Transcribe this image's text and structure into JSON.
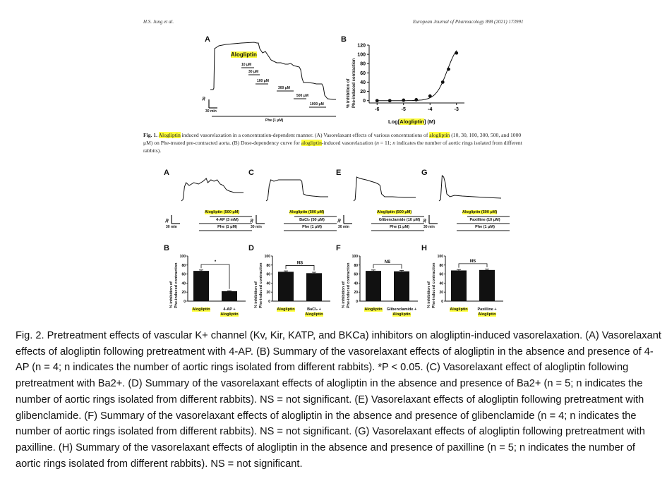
{
  "header": {
    "authors": "H.S. Jung et al.",
    "journal": "European Journal of Pharmacology 898 (2021) 173991"
  },
  "highlight_color": "#ffff3c",
  "fig1": {
    "panel_a": {
      "label": "A",
      "drug": "Alogliptin",
      "doses": [
        "10 μM",
        "30 μM",
        "100 μM",
        "300 μM",
        "500 μM",
        "1000 μM"
      ],
      "scale_g": "1g",
      "scale_min": "30 min",
      "phe": "Phe (1 μM)"
    },
    "panel_b": {
      "label": "B"
    },
    "caption": {
      "label": "Fig. 1.",
      "hl1": "Alogliptin",
      "t1": " induced vasorelaxation in a concentration-dependent manner. (A) Vasorelaxant effects of various concentrations of ",
      "hl2": "alogliptin",
      "t2": " (10, 30, 100, 300, 500, and 1000 μM) on Phe-treated pre-contracted aorta. (B) Dose-dependency curve for ",
      "hl3": "alogliptin",
      "t3": "-induced vasorelaxation (",
      "n_italic": "n",
      "t4": " = 11; ",
      "n_italic2": "n",
      "t5": " indicates the number of aortic rings isolated from different rabbits)."
    }
  },
  "chart_data": [
    {
      "type": "scatter",
      "panel": "Fig1B",
      "xlabel_pre": "Log[",
      "xlabel_hl": "Alogliptin",
      "xlabel_post": "] (M)",
      "ylabel_line1": "% inhibition of",
      "ylabel_line2": "Phe-induced contraction",
      "x": [
        -6,
        -5.52,
        -5,
        -4.52,
        -4,
        -3.52,
        -3.3,
        -3
      ],
      "y": [
        0,
        0,
        1,
        2,
        10,
        40,
        68,
        103
      ],
      "xlim": [
        -6.3,
        -2.7
      ],
      "ylim": [
        -5,
        120
      ],
      "xticks": [
        -6,
        -5,
        -4,
        -3
      ],
      "xtick_labels": [
        "-6",
        "-5",
        "-4",
        "-3"
      ],
      "yticks": [
        0,
        20,
        40,
        60,
        80,
        100,
        120
      ],
      "ytick_labels": [
        "0",
        "20",
        "40",
        "60",
        "80",
        "100",
        "120"
      ],
      "fit": "sigmoid"
    },
    {
      "type": "bar",
      "panel": "B",
      "categories": [
        "Alogliptin",
        "4-AP + Alogliptin"
      ],
      "cat_main": [
        "Alogliptin",
        "4-AP +"
      ],
      "cat_hl": [
        "",
        "Alogliptin"
      ],
      "values": [
        67,
        22
      ],
      "errors": [
        2,
        1
      ],
      "sig": "*",
      "ylim": [
        0,
        100
      ],
      "yticks": [
        "0",
        "20",
        "40",
        "60",
        "80",
        "100"
      ],
      "ylabel_line1": "% inhibition of",
      "ylabel_line2": "Phe-induced contraction"
    },
    {
      "type": "bar",
      "panel": "D",
      "categories": [
        "Alogliptin",
        "BaCl2 + Alogliptin"
      ],
      "cat_main": [
        "Alogliptin",
        "BaCl₂ +"
      ],
      "cat_hl": [
        "",
        "Alogliptin"
      ],
      "values": [
        65,
        62
      ],
      "errors": [
        2,
        2
      ],
      "sig": "NS",
      "ylim": [
        0,
        100
      ],
      "yticks": [
        "0",
        "20",
        "40",
        "60",
        "80",
        "100"
      ],
      "ylabel_line1": "% inhibition of",
      "ylabel_line2": "Phe-induced contraction"
    },
    {
      "type": "bar",
      "panel": "F",
      "categories": [
        "Alogliptin",
        "Glibenclamide + Alogliptin"
      ],
      "cat_main": [
        "Alogliptin",
        "Glibenclamide +"
      ],
      "cat_hl": [
        "",
        "Alogliptin"
      ],
      "values": [
        67,
        66
      ],
      "errors": [
        2,
        2
      ],
      "sig": "NS",
      "ylim": [
        0,
        100
      ],
      "yticks": [
        "0",
        "20",
        "40",
        "60",
        "80",
        "100"
      ],
      "ylabel_line1": "% inhibition of",
      "ylabel_line2": "Phe-induced contraction"
    },
    {
      "type": "bar",
      "panel": "H",
      "categories": [
        "Alogliptin",
        "Paxilline + Alogliptin"
      ],
      "cat_main": [
        "Alogliptin",
        "Paxilline +"
      ],
      "cat_hl": [
        "",
        "Alogliptin"
      ],
      "values": [
        68,
        69
      ],
      "errors": [
        2,
        2
      ],
      "sig": "NS",
      "ylim": [
        0,
        100
      ],
      "yticks": [
        "0",
        "20",
        "40",
        "60",
        "80",
        "100"
      ],
      "ylabel_line1": "% inhibition of",
      "ylabel_line2": "Phe-induced contraction"
    }
  ],
  "fig2": {
    "traces": [
      {
        "label": "A",
        "drug": "Alogliptin (500 μM)",
        "inhibitor": "4-AP (3 mM)",
        "phe": "Phe (1 μM)"
      },
      {
        "label": "C",
        "drug": "Alogliptin (500 μM)",
        "inhibitor": "BaCl₂ (50 μM)",
        "phe": "Phe (1 μM)"
      },
      {
        "label": "E",
        "drug": "Alogliptin (500 μM)",
        "inhibitor": "Glibenclamide (10 μM)",
        "phe": "Phe (1 μM)"
      },
      {
        "label": "G",
        "drug": "Alogliptin (500 μM)",
        "inhibitor": "Paxilline (10 μM)",
        "phe": "Phe (1 μM)"
      }
    ],
    "bar_labels": [
      "B",
      "D",
      "F",
      "H"
    ],
    "scale_g": "1g",
    "scale_min": "30 min",
    "caption": "Fig. 2. Pretreatment effects of vascular K+ channel (Kv, Kir, KATP, and BKCa) inhibitors on alogliptin-induced vasorelaxation. (A) Vasorelaxant effects of alogliptin following pretreatment with 4-AP. (B) Summary of the vasorelaxant effects of alogliptin in the absence and presence of 4-AP (n = 4; n indicates the number of aortic rings isolated from different rabbits). *P < 0.05. (C) Vasorelaxant effect of alogliptin following pretreatment with Ba2+. (D) Summary of the vasorelaxant effects of alogliptin in the absence and presence of Ba2+ (n = 5; n indicates the number of aortic rings isolated from different rabbits). NS = not significant. (E) Vasorelaxant effects of alogliptin following pretreatment with glibenclamide. (F) Summary of the vasorelaxant effects of alogliptin in the absence and presence of glibenclamide (n = 4; n indicates the number of aortic rings isolated from different rabbits). NS = not significant. (G) Vasorelaxant effects of alogliptin following pretreatment with paxilline. (H) Summary of the vasorelaxant effects of alogliptin in the absence and presence of paxilline (n = 5; n indicates the number of aortic rings isolated from different rabbits). NS = not significant."
  }
}
